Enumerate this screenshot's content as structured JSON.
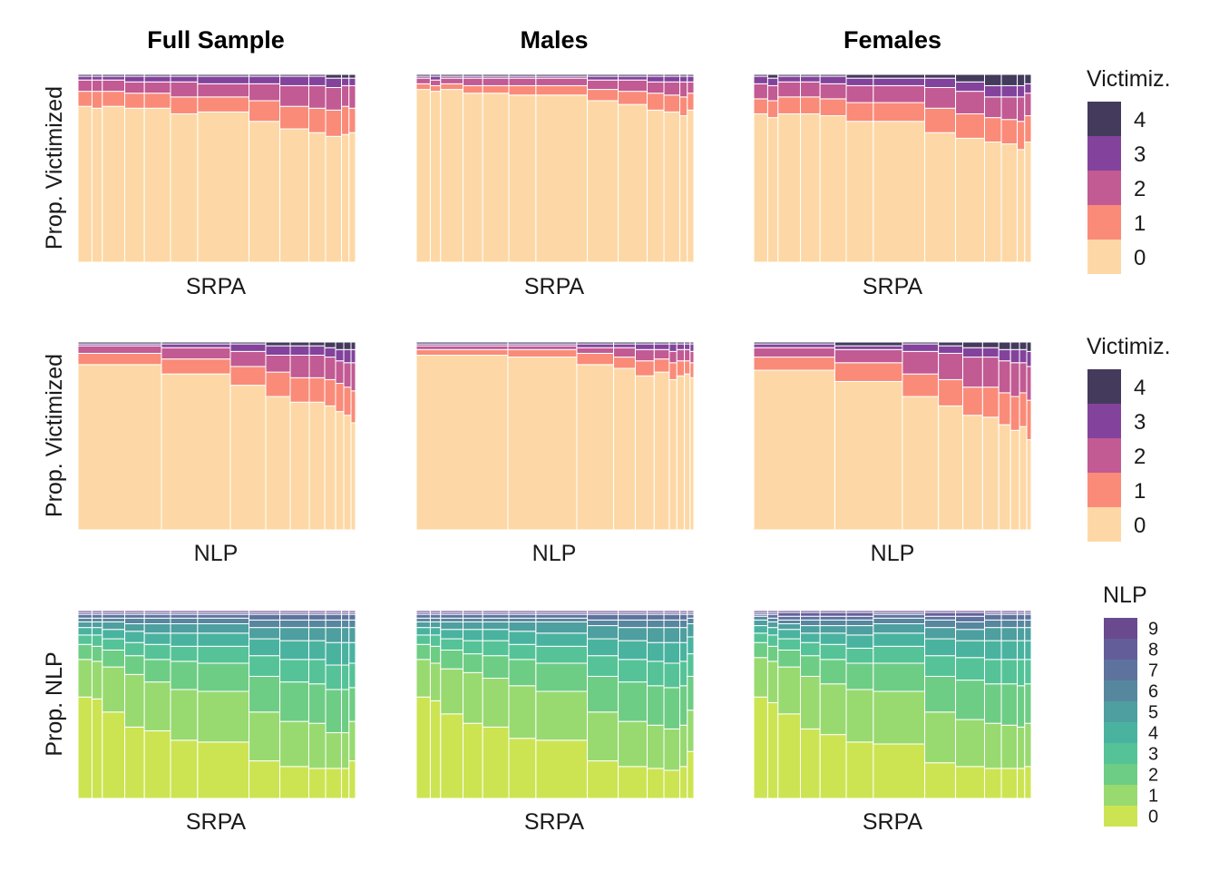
{
  "colors": {
    "victimization": [
      "#FDD8A6",
      "#FA8B79",
      "#C25A93",
      "#83439C",
      "#433A5C"
    ],
    "nlp": [
      "#CDE452",
      "#98DA70",
      "#6ECD84",
      "#55C397",
      "#4AB3A0",
      "#4E9F9F",
      "#57879F",
      "#5D739E",
      "#635E9A",
      "#6A4A8F"
    ]
  },
  "column_titles": [
    "Full Sample",
    "Males",
    "Females"
  ],
  "chart_data": [
    {
      "type": "mosaic",
      "row": 0,
      "col": 0,
      "name": "srpa-vict-full",
      "xlabel": "SRPA",
      "ylabel": "Prop. Victimized",
      "widths": [
        15,
        11,
        24,
        21,
        28,
        29,
        55,
        33,
        31,
        18,
        17,
        8,
        7
      ],
      "stacks": [
        [
          0.83,
          0.08,
          0.06,
          0.02,
          0.01
        ],
        [
          0.82,
          0.09,
          0.06,
          0.02,
          0.01
        ],
        [
          0.83,
          0.08,
          0.06,
          0.02,
          0.01
        ],
        [
          0.82,
          0.08,
          0.06,
          0.03,
          0.01
        ],
        [
          0.82,
          0.08,
          0.06,
          0.03,
          0.01
        ],
        [
          0.79,
          0.09,
          0.08,
          0.03,
          0.01
        ],
        [
          0.8,
          0.08,
          0.07,
          0.04,
          0.01
        ],
        [
          0.75,
          0.11,
          0.09,
          0.04,
          0.01
        ],
        [
          0.71,
          0.12,
          0.11,
          0.05,
          0.01
        ],
        [
          0.69,
          0.13,
          0.12,
          0.05,
          0.01
        ],
        [
          0.67,
          0.14,
          0.12,
          0.05,
          0.02
        ],
        [
          0.68,
          0.15,
          0.11,
          0.04,
          0.02
        ],
        [
          0.69,
          0.13,
          0.12,
          0.04,
          0.02
        ]
      ]
    },
    {
      "type": "mosaic",
      "row": 0,
      "col": 1,
      "name": "srpa-vict-males",
      "xlabel": "SRPA",
      "ylabel": "",
      "widths": [
        15,
        11,
        24,
        21,
        28,
        29,
        55,
        33,
        31,
        18,
        17,
        8,
        7
      ],
      "stacks": [
        [
          0.92,
          0.03,
          0.03,
          0.01,
          0.01
        ],
        [
          0.91,
          0.03,
          0.03,
          0.02,
          0.01
        ],
        [
          0.92,
          0.03,
          0.03,
          0.01,
          0.01
        ],
        [
          0.9,
          0.04,
          0.04,
          0.01,
          0.01
        ],
        [
          0.9,
          0.04,
          0.04,
          0.01,
          0.01
        ],
        [
          0.89,
          0.05,
          0.04,
          0.01,
          0.01
        ],
        [
          0.89,
          0.05,
          0.04,
          0.01,
          0.01
        ],
        [
          0.86,
          0.06,
          0.05,
          0.02,
          0.01
        ],
        [
          0.84,
          0.07,
          0.06,
          0.02,
          0.01
        ],
        [
          0.81,
          0.09,
          0.06,
          0.03,
          0.01
        ],
        [
          0.8,
          0.09,
          0.07,
          0.03,
          0.01
        ],
        [
          0.78,
          0.1,
          0.08,
          0.03,
          0.01
        ],
        [
          0.81,
          0.09,
          0.06,
          0.03,
          0.01
        ]
      ]
    },
    {
      "type": "mosaic",
      "row": 0,
      "col": 2,
      "name": "srpa-vict-females",
      "xlabel": "SRPA",
      "ylabel": "",
      "widths": [
        15,
        11,
        24,
        21,
        28,
        29,
        55,
        33,
        31,
        18,
        17,
        8,
        7
      ],
      "stacks": [
        [
          0.79,
          0.08,
          0.08,
          0.04,
          0.01
        ],
        [
          0.77,
          0.09,
          0.08,
          0.04,
          0.02
        ],
        [
          0.79,
          0.09,
          0.08,
          0.03,
          0.01
        ],
        [
          0.79,
          0.09,
          0.08,
          0.03,
          0.01
        ],
        [
          0.78,
          0.09,
          0.08,
          0.04,
          0.01
        ],
        [
          0.75,
          0.1,
          0.09,
          0.04,
          0.02
        ],
        [
          0.75,
          0.1,
          0.09,
          0.04,
          0.02
        ],
        [
          0.69,
          0.13,
          0.11,
          0.05,
          0.02
        ],
        [
          0.66,
          0.13,
          0.12,
          0.05,
          0.04
        ],
        [
          0.64,
          0.13,
          0.11,
          0.06,
          0.06
        ],
        [
          0.63,
          0.13,
          0.12,
          0.06,
          0.06
        ],
        [
          0.6,
          0.15,
          0.13,
          0.06,
          0.06
        ],
        [
          0.64,
          0.14,
          0.12,
          0.05,
          0.05
        ]
      ]
    },
    {
      "type": "mosaic",
      "row": 1,
      "col": 0,
      "name": "nlp-vict-full",
      "xlabel": "NLP",
      "ylabel": "Prop. Victimized",
      "widths": [
        92,
        76,
        39,
        27,
        21,
        17,
        12,
        9,
        8,
        5
      ],
      "stacks": [
        [
          0.88,
          0.06,
          0.04,
          0.01,
          0.01
        ],
        [
          0.83,
          0.08,
          0.06,
          0.02,
          0.01
        ],
        [
          0.77,
          0.1,
          0.08,
          0.04,
          0.01
        ],
        [
          0.71,
          0.13,
          0.09,
          0.05,
          0.02
        ],
        [
          0.68,
          0.13,
          0.12,
          0.05,
          0.02
        ],
        [
          0.68,
          0.13,
          0.12,
          0.05,
          0.02
        ],
        [
          0.66,
          0.14,
          0.12,
          0.05,
          0.03
        ],
        [
          0.63,
          0.15,
          0.12,
          0.06,
          0.04
        ],
        [
          0.61,
          0.15,
          0.13,
          0.07,
          0.04
        ],
        [
          0.57,
          0.17,
          0.15,
          0.07,
          0.04
        ]
      ]
    },
    {
      "type": "mosaic",
      "row": 1,
      "col": 1,
      "name": "nlp-vict-males",
      "xlabel": "NLP",
      "ylabel": "",
      "widths": [
        97,
        73,
        39,
        23,
        20,
        16,
        8,
        8,
        6,
        4
      ],
      "stacks": [
        [
          0.93,
          0.03,
          0.02,
          0.01,
          0.01
        ],
        [
          0.92,
          0.04,
          0.02,
          0.01,
          0.01
        ],
        [
          0.88,
          0.06,
          0.03,
          0.02,
          0.01
        ],
        [
          0.86,
          0.06,
          0.05,
          0.02,
          0.01
        ],
        [
          0.82,
          0.08,
          0.06,
          0.03,
          0.01
        ],
        [
          0.84,
          0.07,
          0.05,
          0.03,
          0.01
        ],
        [
          0.8,
          0.09,
          0.06,
          0.04,
          0.01
        ],
        [
          0.82,
          0.08,
          0.06,
          0.03,
          0.01
        ],
        [
          0.83,
          0.07,
          0.06,
          0.03,
          0.01
        ],
        [
          0.81,
          0.08,
          0.06,
          0.04,
          0.01
        ]
      ]
    },
    {
      "type": "mosaic",
      "row": 1,
      "col": 2,
      "name": "nlp-vict-females",
      "xlabel": "NLP",
      "ylabel": "",
      "widths": [
        90,
        75,
        40,
        27,
        22,
        18,
        13,
        10,
        8,
        5
      ],
      "stacks": [
        [
          0.85,
          0.07,
          0.05,
          0.02,
          0.01
        ],
        [
          0.79,
          0.1,
          0.07,
          0.02,
          0.02
        ],
        [
          0.71,
          0.12,
          0.12,
          0.04,
          0.01
        ],
        [
          0.66,
          0.14,
          0.14,
          0.04,
          0.02
        ],
        [
          0.61,
          0.15,
          0.16,
          0.05,
          0.03
        ],
        [
          0.6,
          0.16,
          0.16,
          0.05,
          0.03
        ],
        [
          0.56,
          0.17,
          0.17,
          0.06,
          0.04
        ],
        [
          0.53,
          0.18,
          0.18,
          0.07,
          0.04
        ],
        [
          0.55,
          0.18,
          0.16,
          0.07,
          0.04
        ],
        [
          0.48,
          0.21,
          0.18,
          0.08,
          0.05
        ]
      ]
    },
    {
      "type": "mosaic",
      "row": 2,
      "col": 0,
      "name": "srpa-nlp-full",
      "xlabel": "SRPA",
      "ylabel": "Prop. NLP",
      "widths": [
        15,
        11,
        24,
        21,
        28,
        29,
        55,
        33,
        31,
        18,
        17,
        8,
        7
      ],
      "stacks": [
        [
          0.54,
          0.2,
          0.08,
          0.05,
          0.04,
          0.03,
          0.02,
          0.02,
          0.01,
          0.01
        ],
        [
          0.53,
          0.2,
          0.08,
          0.06,
          0.04,
          0.03,
          0.02,
          0.02,
          0.01,
          0.01
        ],
        [
          0.46,
          0.24,
          0.09,
          0.06,
          0.05,
          0.04,
          0.02,
          0.02,
          0.01,
          0.01
        ],
        [
          0.38,
          0.28,
          0.1,
          0.07,
          0.06,
          0.04,
          0.03,
          0.02,
          0.01,
          0.01
        ],
        [
          0.36,
          0.26,
          0.12,
          0.08,
          0.06,
          0.05,
          0.03,
          0.02,
          0.01,
          0.01
        ],
        [
          0.31,
          0.27,
          0.15,
          0.08,
          0.07,
          0.05,
          0.03,
          0.02,
          0.01,
          0.01
        ],
        [
          0.3,
          0.27,
          0.15,
          0.09,
          0.07,
          0.05,
          0.03,
          0.02,
          0.01,
          0.01
        ],
        [
          0.2,
          0.26,
          0.19,
          0.11,
          0.09,
          0.06,
          0.04,
          0.03,
          0.01,
          0.01
        ],
        [
          0.17,
          0.24,
          0.21,
          0.12,
          0.1,
          0.07,
          0.04,
          0.03,
          0.01,
          0.01
        ],
        [
          0.16,
          0.24,
          0.21,
          0.13,
          0.1,
          0.07,
          0.04,
          0.03,
          0.01,
          0.01
        ],
        [
          0.16,
          0.19,
          0.23,
          0.13,
          0.12,
          0.08,
          0.04,
          0.03,
          0.01,
          0.01
        ],
        [
          0.16,
          0.19,
          0.23,
          0.13,
          0.12,
          0.08,
          0.04,
          0.03,
          0.01,
          0.01
        ],
        [
          0.2,
          0.21,
          0.18,
          0.13,
          0.11,
          0.08,
          0.04,
          0.03,
          0.01,
          0.01
        ]
      ]
    },
    {
      "type": "mosaic",
      "row": 2,
      "col": 1,
      "name": "srpa-nlp-males",
      "xlabel": "SRPA",
      "ylabel": "",
      "widths": [
        15,
        11,
        24,
        21,
        28,
        29,
        55,
        33,
        31,
        18,
        17,
        8,
        7
      ],
      "stacks": [
        [
          0.54,
          0.2,
          0.08,
          0.05,
          0.04,
          0.03,
          0.02,
          0.02,
          0.01,
          0.01
        ],
        [
          0.52,
          0.2,
          0.09,
          0.06,
          0.04,
          0.03,
          0.02,
          0.02,
          0.01,
          0.01
        ],
        [
          0.45,
          0.24,
          0.1,
          0.06,
          0.05,
          0.04,
          0.02,
          0.02,
          0.01,
          0.01
        ],
        [
          0.4,
          0.27,
          0.1,
          0.07,
          0.06,
          0.04,
          0.02,
          0.02,
          0.01,
          0.01
        ],
        [
          0.38,
          0.26,
          0.12,
          0.08,
          0.06,
          0.04,
          0.02,
          0.02,
          0.01,
          0.01
        ],
        [
          0.32,
          0.28,
          0.14,
          0.08,
          0.07,
          0.05,
          0.02,
          0.02,
          0.01,
          0.01
        ],
        [
          0.31,
          0.26,
          0.15,
          0.09,
          0.07,
          0.06,
          0.02,
          0.02,
          0.01,
          0.01
        ],
        [
          0.2,
          0.26,
          0.19,
          0.11,
          0.09,
          0.07,
          0.03,
          0.03,
          0.01,
          0.01
        ],
        [
          0.17,
          0.24,
          0.21,
          0.12,
          0.1,
          0.07,
          0.04,
          0.03,
          0.01,
          0.01
        ],
        [
          0.16,
          0.23,
          0.21,
          0.13,
          0.1,
          0.08,
          0.04,
          0.03,
          0.01,
          0.01
        ],
        [
          0.15,
          0.22,
          0.22,
          0.13,
          0.11,
          0.08,
          0.04,
          0.03,
          0.01,
          0.01
        ],
        [
          0.17,
          0.22,
          0.21,
          0.13,
          0.1,
          0.08,
          0.04,
          0.03,
          0.01,
          0.01
        ],
        [
          0.25,
          0.22,
          0.18,
          0.12,
          0.09,
          0.07,
          0.03,
          0.02,
          0.01,
          0.01
        ]
      ]
    },
    {
      "type": "mosaic",
      "row": 2,
      "col": 2,
      "name": "srpa-nlp-females",
      "xlabel": "SRPA",
      "ylabel": "",
      "widths": [
        15,
        11,
        24,
        21,
        28,
        29,
        55,
        33,
        31,
        18,
        17,
        8,
        7
      ],
      "stacks": [
        [
          0.54,
          0.21,
          0.08,
          0.05,
          0.04,
          0.03,
          0.02,
          0.01,
          0.01,
          0.01
        ],
        [
          0.51,
          0.22,
          0.08,
          0.06,
          0.04,
          0.03,
          0.02,
          0.02,
          0.01,
          0.01
        ],
        [
          0.45,
          0.25,
          0.09,
          0.06,
          0.05,
          0.03,
          0.02,
          0.02,
          0.02,
          0.01
        ],
        [
          0.37,
          0.28,
          0.11,
          0.07,
          0.05,
          0.04,
          0.03,
          0.02,
          0.02,
          0.01
        ],
        [
          0.34,
          0.27,
          0.13,
          0.08,
          0.06,
          0.04,
          0.03,
          0.02,
          0.02,
          0.01
        ],
        [
          0.3,
          0.28,
          0.14,
          0.08,
          0.07,
          0.05,
          0.03,
          0.02,
          0.02,
          0.01
        ],
        [
          0.29,
          0.28,
          0.15,
          0.09,
          0.07,
          0.05,
          0.03,
          0.02,
          0.01,
          0.01
        ],
        [
          0.19,
          0.27,
          0.19,
          0.11,
          0.09,
          0.06,
          0.04,
          0.02,
          0.02,
          0.01
        ],
        [
          0.17,
          0.25,
          0.21,
          0.12,
          0.09,
          0.06,
          0.04,
          0.03,
          0.02,
          0.01
        ],
        [
          0.16,
          0.24,
          0.21,
          0.13,
          0.1,
          0.07,
          0.04,
          0.03,
          0.01,
          0.01
        ],
        [
          0.16,
          0.23,
          0.22,
          0.13,
          0.1,
          0.07,
          0.04,
          0.03,
          0.01,
          0.01
        ],
        [
          0.16,
          0.22,
          0.22,
          0.14,
          0.1,
          0.07,
          0.04,
          0.03,
          0.01,
          0.01
        ],
        [
          0.17,
          0.23,
          0.21,
          0.13,
          0.1,
          0.07,
          0.04,
          0.03,
          0.01,
          0.01
        ]
      ]
    }
  ],
  "legends": [
    {
      "title": "Victimiz.",
      "labels": [
        "0",
        "1",
        "2",
        "3",
        "4"
      ],
      "palette": "victimization"
    },
    {
      "title": "Victimiz.",
      "labels": [
        "0",
        "1",
        "2",
        "3",
        "4"
      ],
      "palette": "victimization"
    },
    {
      "title": "NLP",
      "labels": [
        "0",
        "1",
        "2",
        "3",
        "4",
        "5",
        "6",
        "7",
        "8",
        "9"
      ],
      "palette": "nlp"
    }
  ]
}
